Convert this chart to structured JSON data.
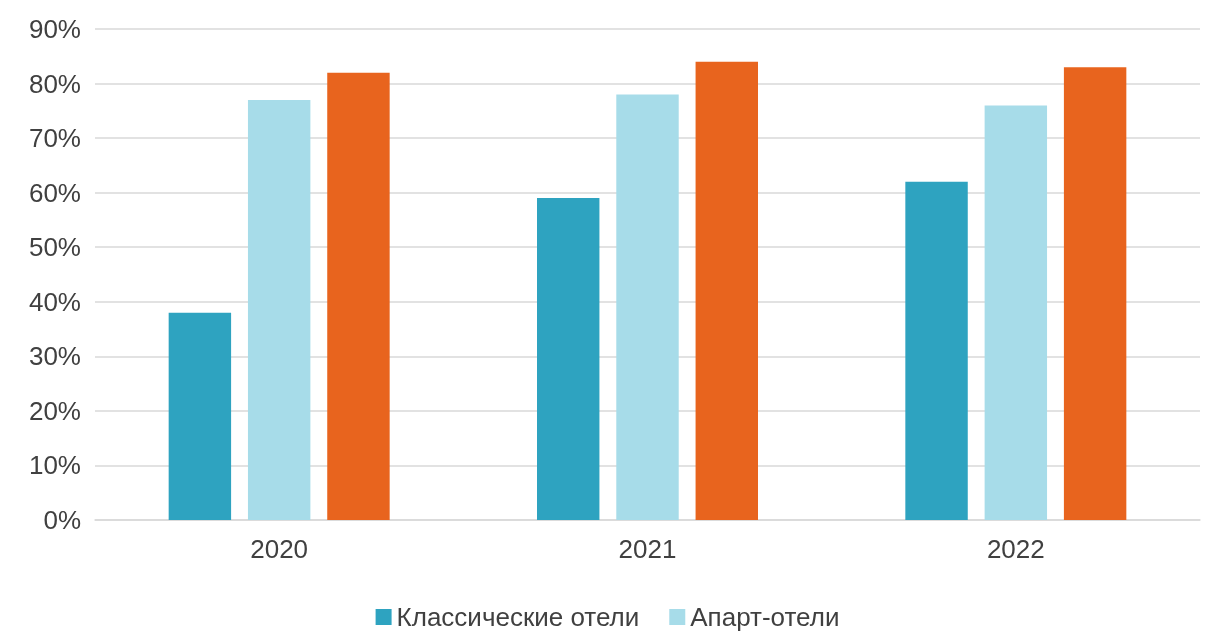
{
  "chart_data": {
    "type": "bar",
    "categories": [
      "2020",
      "2021",
      "2022"
    ],
    "series": [
      {
        "name": "Классические отели",
        "color": "#2ea3c0",
        "values": [
          38,
          59,
          62
        ]
      },
      {
        "name": "Апарт-отели",
        "color": "#a7dce9",
        "values": [
          77,
          78,
          76
        ]
      },
      {
        "color": "#e8641e",
        "values": [
          82,
          84,
          83
        ]
      }
    ],
    "ylim": [
      0,
      90
    ],
    "yticks": [
      {
        "value": 0,
        "label": "0%"
      },
      {
        "value": 10,
        "label": "10%"
      },
      {
        "value": 20,
        "label": "20%"
      },
      {
        "value": 30,
        "label": "30%"
      },
      {
        "value": 40,
        "label": "40%"
      },
      {
        "value": 50,
        "label": "50%"
      },
      {
        "value": 60,
        "label": "60%"
      },
      {
        "value": 70,
        "label": "70%"
      },
      {
        "value": 80,
        "label": "80%"
      },
      {
        "value": 90,
        "label": "90%"
      }
    ],
    "grid": "y",
    "legend": "bottom"
  }
}
